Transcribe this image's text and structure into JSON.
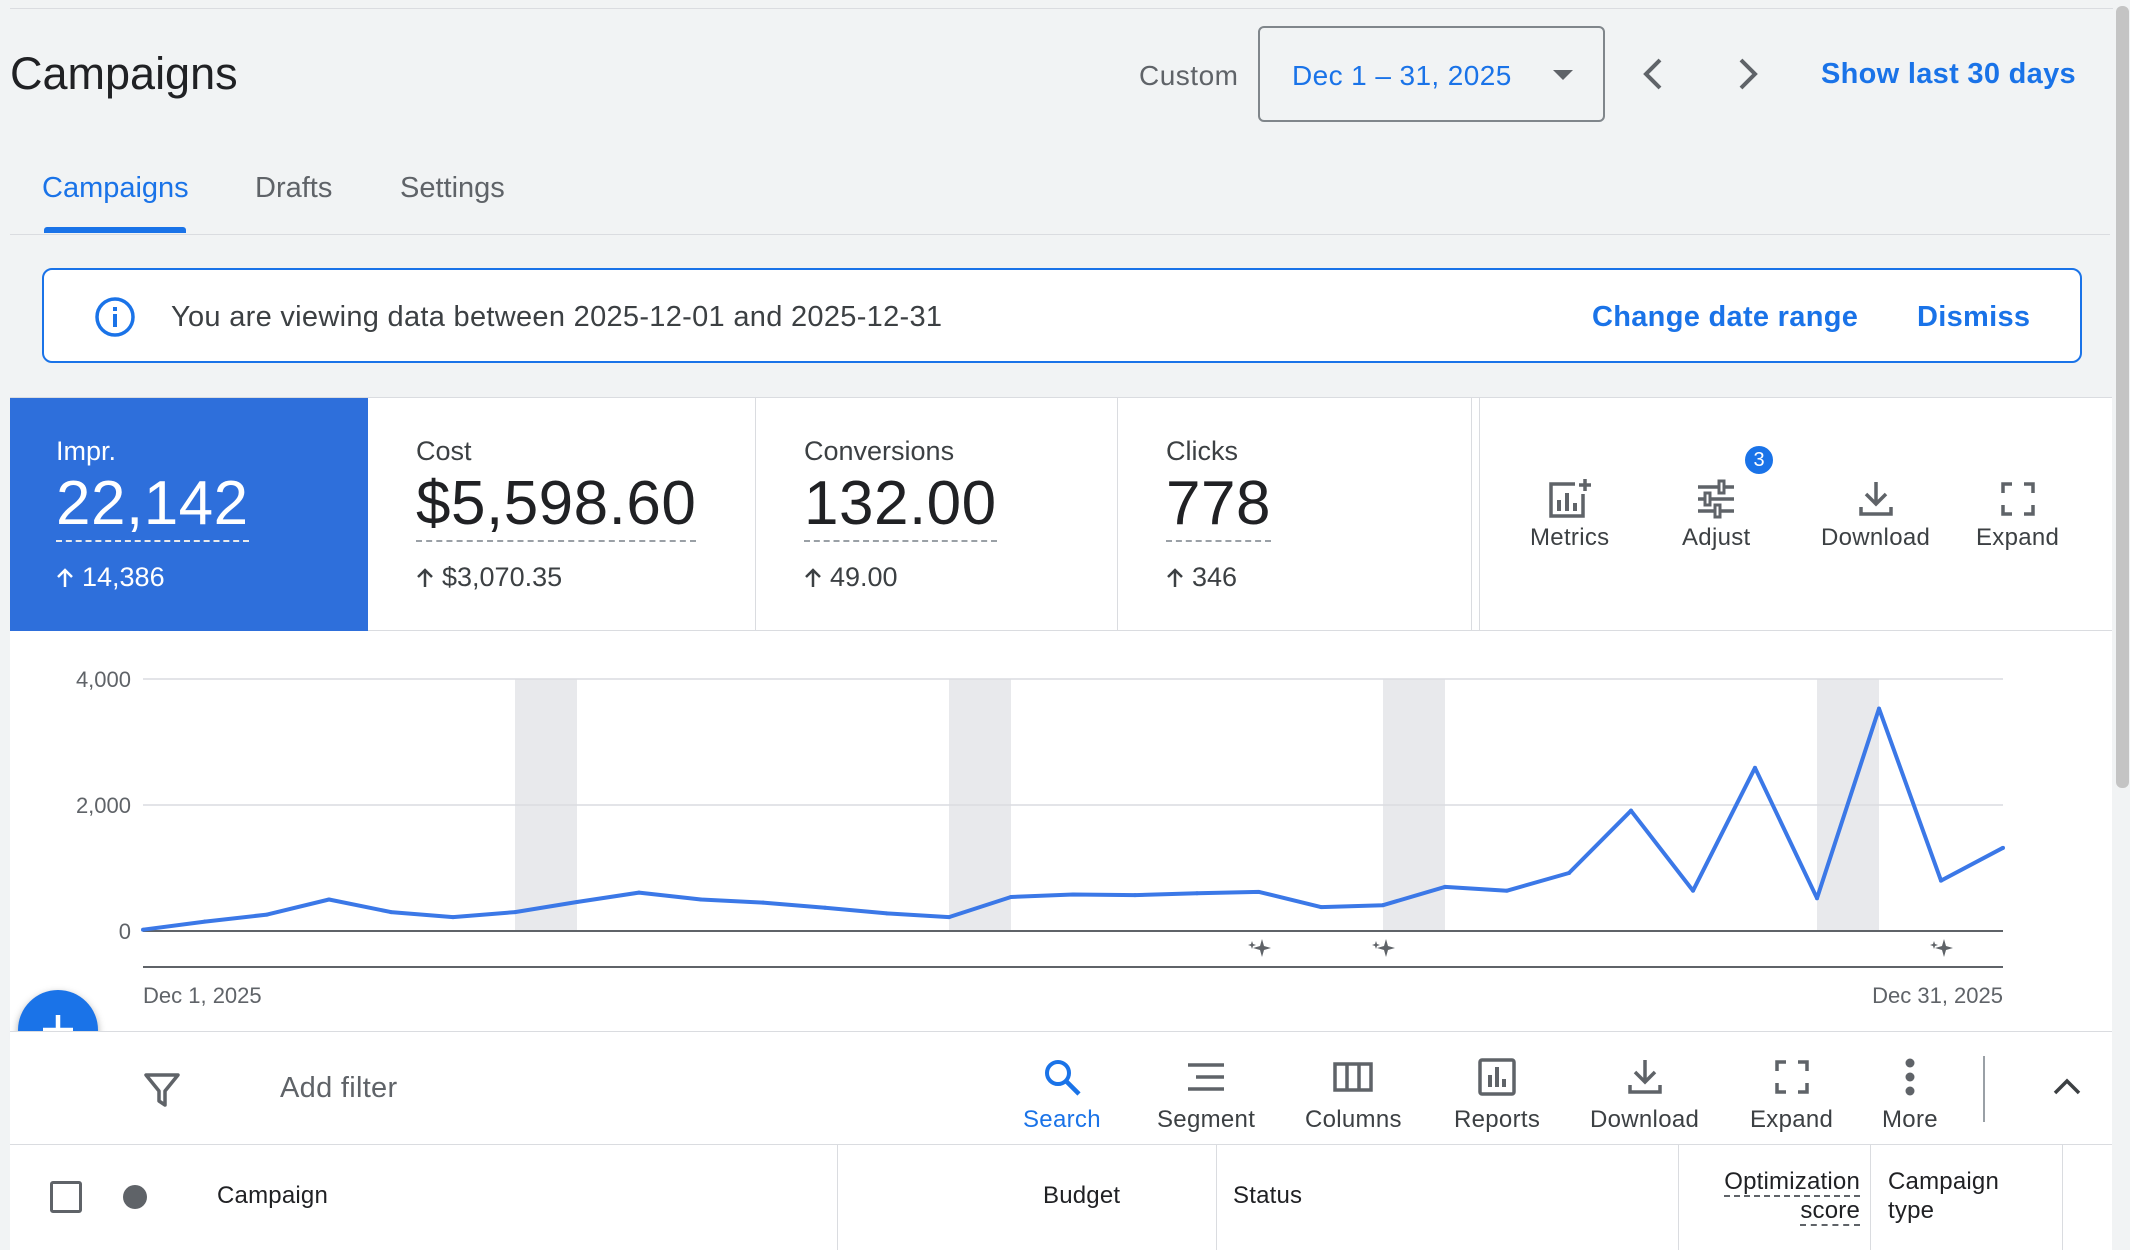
{
  "header": {
    "title": "Campaigns",
    "custom_label": "Custom",
    "date_range": "Dec 1 – 31, 2025",
    "show_last_30": "Show last 30 days"
  },
  "tabs": [
    {
      "label": "Campaigns",
      "active": true
    },
    {
      "label": "Drafts",
      "active": false
    },
    {
      "label": "Settings",
      "active": false
    }
  ],
  "banner": {
    "message": "You are viewing data between 2025-12-01 and 2025-12-31",
    "change_date": "Change date range",
    "dismiss": "Dismiss"
  },
  "metrics": [
    {
      "label": "Impr.",
      "value": "22,142",
      "delta": "14,386",
      "active": true
    },
    {
      "label": "Cost",
      "value": "$5,598.60",
      "delta": "$3,070.35",
      "active": false
    },
    {
      "label": "Conversions",
      "value": "132.00",
      "delta": "49.00",
      "active": false
    },
    {
      "label": "Clicks",
      "value": "778",
      "delta": "346",
      "active": false
    }
  ],
  "card_tools": {
    "metrics": "Metrics",
    "adjust": "Adjust",
    "adjust_badge": "3",
    "download": "Download",
    "expand": "Expand"
  },
  "chart_data": {
    "type": "line",
    "x_start_label": "Dec 1, 2025",
    "x_end_label": "Dec 31, 2025",
    "y_ticks": [
      "4,000",
      "2,000",
      "0"
    ],
    "ylim": [
      0,
      4000
    ],
    "grid": true,
    "color": "#3b78e7",
    "series": [
      {
        "values": [
          20,
          150,
          260,
          500,
          300,
          220,
          300,
          460,
          610,
          500,
          450,
          370,
          280,
          220,
          540,
          580,
          570,
          600,
          620,
          380,
          410,
          700,
          640,
          920,
          1910,
          640,
          2590,
          520,
          3530,
          800,
          1320
        ]
      }
    ],
    "weekend_bands": [
      [
        6,
        7
      ],
      [
        13,
        14
      ],
      [
        20,
        21
      ],
      [
        27,
        28
      ]
    ],
    "annotation_days": [
      18,
      20,
      29
    ]
  },
  "toolbar": {
    "add_filter": "Add filter",
    "search": "Search",
    "segment": "Segment",
    "columns": "Columns",
    "reports": "Reports",
    "download": "Download",
    "expand": "Expand",
    "more": "More"
  },
  "table": {
    "columns": [
      "Campaign",
      "Budget",
      "Status",
      "Optimization",
      "score",
      "Campaign",
      "type"
    ]
  }
}
